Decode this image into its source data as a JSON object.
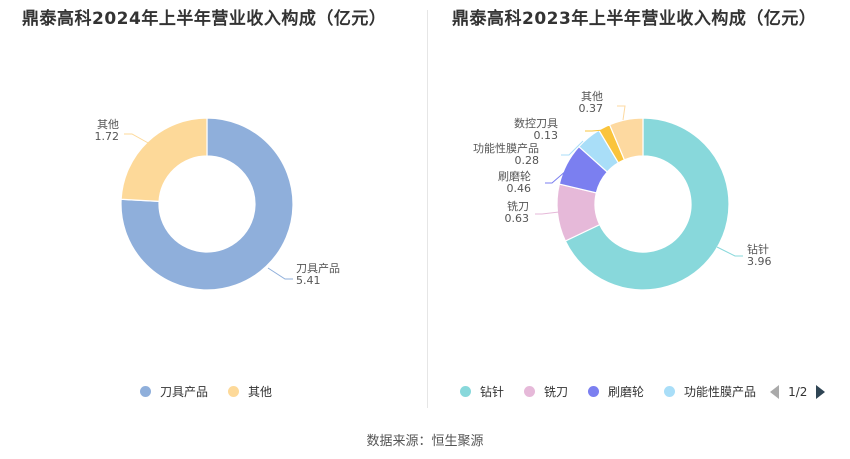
{
  "source": "数据来源：恒生聚源",
  "chart_data": [
    {
      "type": "pie",
      "title": "鼎泰高科2024年上半年营业收入构成（亿元）",
      "series": [
        {
          "name": "刀具产品",
          "value": 5.41,
          "label": "5.41",
          "color": "#8fafdb"
        },
        {
          "name": "其他",
          "value": 1.72,
          "label": "1.72",
          "color": "#fdd999"
        }
      ],
      "legend": [
        "刀具产品",
        "其他"
      ]
    },
    {
      "type": "pie",
      "title": "鼎泰高科2023年上半年营业收入构成（亿元）",
      "series": [
        {
          "name": "钻针",
          "value": 3.96,
          "label": "3.96",
          "color": "#88d8db"
        },
        {
          "name": "铣刀",
          "value": 0.63,
          "label": "0.63",
          "color": "#e6b9d9"
        },
        {
          "name": "刷磨轮",
          "value": 0.46,
          "label": "0.46",
          "color": "#7b7ff0"
        },
        {
          "name": "功能性膜产品",
          "value": 0.28,
          "label": "0.28",
          "color": "#a9def8"
        },
        {
          "name": "数控刀具",
          "value": 0.13,
          "label": "0.13",
          "color": "#fac43c"
        },
        {
          "name": "其他",
          "value": 0.37,
          "label": "0.37",
          "color": "#fdd9a0"
        }
      ],
      "legend": [
        "钻针",
        "铣刀",
        "刷磨轮",
        "功能性膜产品"
      ],
      "pager": "1/2"
    }
  ]
}
